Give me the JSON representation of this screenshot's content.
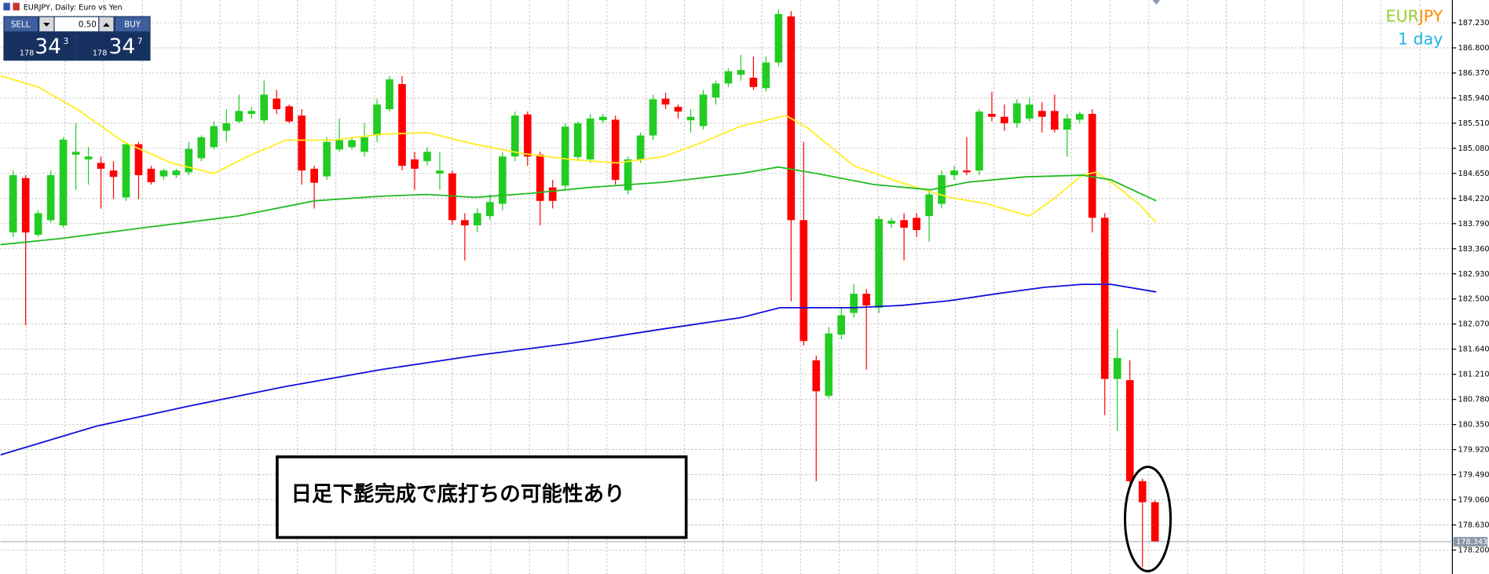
{
  "chart_data": {
    "type": "candlestick",
    "title": "EURJPY, Daily: Euro vs Yen",
    "up_color": "#22cc22",
    "down_color": "#ff0000",
    "open": [
      183.64,
      184.57,
      183.6,
      183.85,
      183.76,
      184.97,
      184.89,
      184.83,
      184.7,
      184.24,
      185.15,
      184.73,
      184.6,
      184.62,
      184.67,
      184.91,
      185.1,
      185.38,
      185.54,
      185.67,
      185.56,
      185.93,
      185.8,
      185.64,
      184.73,
      184.6,
      185.06,
      185.1,
      185.02,
      185.3,
      185.75,
      186.18,
      184.89,
      184.86,
      184.65,
      184.65,
      183.85,
      183.76,
      183.92,
      184.13,
      184.94,
      185.66,
      184.97,
      184.41,
      184.44,
      184.93,
      184.89,
      185.56,
      185.57,
      184.36,
      184.89,
      185.3,
      185.93,
      185.79,
      185.56,
      185.46,
      185.95,
      186.19,
      186.34,
      186.29,
      186.11,
      186.55,
      187.34,
      183.85,
      181.45,
      180.84,
      181.89,
      182.26,
      182.59,
      182.35,
      183.79,
      183.85,
      183.89,
      183.92,
      184.13,
      184.62,
      184.7,
      184.7,
      185.67,
      185.62,
      185.51,
      185.59,
      185.72,
      185.72,
      185.4,
      185.57,
      185.67,
      183.89,
      181.13,
      181.11,
      179.38,
      179.02
    ],
    "high": [
      184.7,
      184.62,
      184.02,
      184.7,
      185.27,
      185.51,
      185.1,
      184.94,
      184.86,
      185.19,
      185.19,
      184.78,
      184.73,
      184.73,
      185.19,
      185.3,
      185.54,
      185.75,
      186.0,
      185.79,
      186.24,
      186.08,
      185.83,
      185.75,
      184.78,
      185.27,
      185.59,
      185.27,
      185.51,
      185.92,
      186.32,
      186.32,
      185.02,
      185.1,
      185.02,
      184.7,
      183.97,
      184.05,
      184.29,
      185.02,
      185.71,
      185.71,
      185.02,
      184.54,
      185.51,
      185.54,
      185.67,
      185.67,
      185.64,
      184.94,
      185.35,
      186.0,
      186.03,
      185.83,
      185.75,
      186.08,
      186.24,
      186.45,
      186.68,
      186.65,
      186.65,
      187.46,
      187.43,
      185.19,
      181.53,
      182.02,
      182.35,
      182.75,
      182.67,
      183.92,
      183.89,
      183.97,
      183.97,
      184.37,
      184.7,
      184.78,
      185.27,
      185.75,
      186.05,
      185.83,
      185.92,
      185.95,
      185.87,
      186.0,
      185.67,
      185.71,
      185.75,
      183.97,
      181.99,
      181.45,
      179.42,
      179.05
    ],
    "low": [
      183.56,
      182.05,
      183.56,
      183.81,
      183.72,
      184.37,
      184.46,
      184.05,
      184.21,
      184.18,
      184.21,
      184.46,
      184.54,
      184.57,
      184.62,
      184.86,
      185.06,
      185.19,
      185.51,
      185.59,
      185.51,
      185.67,
      185.51,
      184.46,
      184.05,
      184.54,
      185.02,
      185.06,
      184.94,
      185.19,
      185.71,
      184.7,
      184.37,
      184.78,
      184.37,
      183.77,
      183.16,
      183.64,
      183.85,
      184.02,
      184.86,
      184.78,
      183.76,
      184.05,
      184.37,
      184.86,
      184.83,
      185.51,
      184.46,
      184.29,
      184.83,
      185.22,
      185.75,
      185.59,
      185.35,
      185.4,
      185.83,
      186.13,
      186.24,
      186.08,
      186.05,
      186.48,
      182.46,
      181.7,
      179.38,
      180.8,
      181.81,
      182.18,
      181.29,
      182.26,
      183.72,
      183.16,
      183.56,
      183.48,
      184.05,
      184.54,
      184.62,
      184.62,
      185.54,
      185.38,
      185.43,
      185.54,
      185.35,
      185.35,
      184.94,
      185.51,
      183.64,
      180.51,
      180.24,
      179.34,
      177.91,
      178.34
    ],
    "close": [
      184.62,
      183.64,
      183.97,
      184.62,
      185.23,
      185.02,
      184.94,
      184.73,
      184.59,
      185.15,
      184.62,
      184.5,
      184.7,
      184.7,
      185.07,
      185.27,
      185.46,
      185.51,
      185.72,
      185.72,
      186.0,
      185.75,
      185.54,
      184.7,
      184.49,
      185.19,
      185.22,
      185.22,
      185.27,
      185.83,
      186.26,
      184.78,
      184.73,
      185.02,
      184.7,
      183.85,
      183.76,
      183.97,
      184.16,
      184.94,
      185.64,
      184.94,
      184.18,
      184.18,
      185.45,
      185.51,
      185.59,
      185.62,
      184.54,
      184.89,
      185.3,
      185.92,
      185.83,
      185.71,
      185.62,
      186.0,
      186.19,
      186.4,
      186.42,
      186.13,
      186.55,
      187.38,
      183.85,
      181.78,
      180.92,
      181.91,
      182.22,
      182.59,
      182.39,
      183.87,
      183.84,
      183.72,
      183.68,
      184.29,
      184.62,
      184.7,
      184.67,
      185.71,
      185.62,
      185.51,
      185.85,
      185.83,
      185.62,
      185.4,
      185.59,
      185.67,
      183.89,
      181.13,
      181.49,
      179.38,
      179.02,
      178.34
    ],
    "xlim": [
      -1,
      114.7
    ],
    "ylim": [
      177.79,
      187.62
    ],
    "yticks": [
      {
        "value": 178.2,
        "label": "178.200"
      },
      {
        "value": 178.63,
        "label": "178.630"
      },
      {
        "value": 179.06,
        "label": "179.060"
      },
      {
        "value": 179.49,
        "label": "179.490"
      },
      {
        "value": 179.92,
        "label": "179.920"
      },
      {
        "value": 180.35,
        "label": "180.350"
      },
      {
        "value": 180.78,
        "label": "180.780"
      },
      {
        "value": 181.21,
        "label": "181.210"
      },
      {
        "value": 181.64,
        "label": "181.640"
      },
      {
        "value": 182.07,
        "label": "182.070"
      },
      {
        "value": 182.5,
        "label": "182.500"
      },
      {
        "value": 182.93,
        "label": "182.930"
      },
      {
        "value": 183.36,
        "label": "183.360"
      },
      {
        "value": 183.79,
        "label": "183.790"
      },
      {
        "value": 184.22,
        "label": "184.220"
      },
      {
        "value": 184.65,
        "label": "184.650"
      },
      {
        "value": 185.08,
        "label": "185.080"
      },
      {
        "value": 185.51,
        "label": "185.510"
      },
      {
        "value": 185.94,
        "label": "185.940"
      },
      {
        "value": 186.37,
        "label": "186.370"
      },
      {
        "value": 186.8,
        "label": "186.800"
      },
      {
        "value": 187.23,
        "label": "187.230"
      }
    ],
    "grid": true,
    "overlays": [
      {
        "color": "#ffee22",
        "x": [
          -1.0,
          2.0,
          5.1,
          8.8,
          12.6,
          16.0,
          18.7,
          21.7,
          25.5,
          29.3,
          33.0,
          36.8,
          40.6,
          44.4,
          48.1,
          51.9,
          55.0,
          58.0,
          61.6,
          63.3,
          67.0,
          70.8,
          74.6,
          77.6,
          81.0,
          82.9,
          85.2,
          86.3,
          87.8,
          89.7,
          91.1
        ],
        "values": [
          186.32,
          186.13,
          185.75,
          185.19,
          184.83,
          184.65,
          184.94,
          185.22,
          185.22,
          185.32,
          185.35,
          185.15,
          184.99,
          184.89,
          184.83,
          184.94,
          185.19,
          185.46,
          185.64,
          185.43,
          184.78,
          184.49,
          184.24,
          184.13,
          183.92,
          184.21,
          184.62,
          184.67,
          184.46,
          184.13,
          183.81
        ]
      },
      {
        "color": "#22bb22",
        "x": [
          -1.0,
          3.6,
          10.4,
          17.9,
          24.0,
          29.3,
          33.0,
          36.8,
          41.3,
          45.9,
          51.9,
          58.0,
          61.0,
          64.0,
          68.6,
          73.1,
          76.1,
          80.6,
          85.2,
          87.5,
          91.1
        ],
        "values": [
          183.43,
          183.53,
          183.72,
          183.92,
          184.18,
          184.26,
          184.29,
          184.24,
          184.31,
          184.41,
          184.5,
          184.65,
          184.76,
          184.65,
          184.46,
          184.37,
          184.5,
          184.59,
          184.62,
          184.54,
          184.18
        ]
      },
      {
        "color": "#1010dd",
        "x": [
          -1.0,
          6.6,
          14.1,
          21.7,
          29.3,
          36.8,
          44.4,
          51.9,
          58.0,
          61.1,
          67.0,
          70.8,
          74.6,
          78.4,
          82.2,
          85.2,
          87.5,
          91.1
        ],
        "values": [
          179.83,
          180.32,
          180.67,
          181.0,
          181.29,
          181.53,
          181.74,
          181.99,
          182.18,
          182.35,
          182.35,
          182.39,
          182.47,
          182.59,
          182.7,
          182.75,
          182.75,
          182.62
        ]
      }
    ],
    "current_price": 178.343,
    "annotation": "日足下髭完成で底打ちの可能性あり"
  },
  "symbol_parts": [
    "EUR",
    "JPY"
  ],
  "timeframe": "1 day",
  "trade_panel": {
    "sell": "SELL",
    "lot": "0.50",
    "buy": "BUY",
    "sell_price": [
      "178",
      "34",
      "3"
    ],
    "buy_price": [
      "178",
      "34",
      "7"
    ]
  }
}
